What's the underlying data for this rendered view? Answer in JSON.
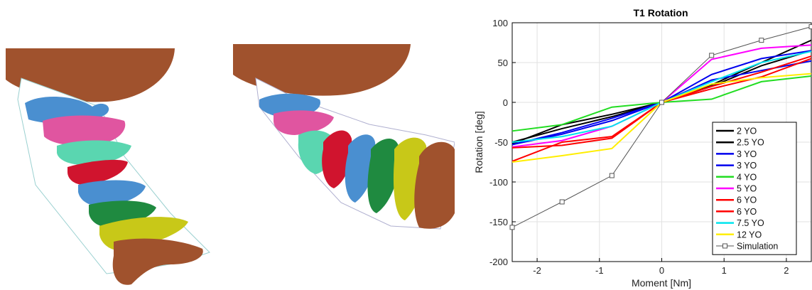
{
  "chart_data": {
    "type": "line",
    "title": "T1 Rotation",
    "xlabel": "Moment [Nm]",
    "ylabel": "Rotation [deg]",
    "xlim": [
      -2.4,
      2.4
    ],
    "ylim": [
      -200,
      100
    ],
    "xticks": [
      -2,
      -1,
      0,
      1,
      2
    ],
    "yticks": [
      -200,
      -150,
      -100,
      -50,
      0,
      50,
      100
    ],
    "grid": true,
    "legend_position": "bottom-right",
    "x": [
      -2.4,
      -1.6,
      -0.8,
      0,
      0.8,
      1.6,
      2.4
    ],
    "series": [
      {
        "name": "2 YO",
        "color": "#000000",
        "values": [
          -50,
          -33,
          -18,
          0,
          22,
          50,
          78
        ]
      },
      {
        "name": "2.5 YO",
        "color": "#000000",
        "values": [
          -52,
          -28,
          -15,
          0,
          20,
          46,
          65
        ]
      },
      {
        "name": "3 YO",
        "color": "#0000ee",
        "values": [
          -53,
          -38,
          -20,
          0,
          35,
          55,
          65
        ]
      },
      {
        "name": "3 YO",
        "color": "#0000ee",
        "values": [
          -53,
          -40,
          -23,
          0,
          28,
          40,
          52
        ]
      },
      {
        "name": "4 YO",
        "color": "#22dd22",
        "values": [
          -36,
          -28,
          -6,
          0,
          4,
          26,
          33
        ]
      },
      {
        "name": "5 YO",
        "color": "#ff00ff",
        "values": [
          -56,
          -48,
          -30,
          0,
          54,
          68,
          72
        ]
      },
      {
        "name": "6 YO",
        "color": "#ff0000",
        "values": [
          -74,
          -50,
          -43,
          0,
          20,
          38,
          58
        ]
      },
      {
        "name": "6 YO",
        "color": "#ff0000",
        "values": [
          -57,
          -54,
          -45,
          0,
          17,
          32,
          55
        ]
      },
      {
        "name": "7.5 YO",
        "color": "#00e5ee",
        "values": [
          -50,
          -43,
          -30,
          0,
          26,
          50,
          64
        ]
      },
      {
        "name": "12 YO",
        "color": "#ffee00",
        "values": [
          -75,
          -67,
          -58,
          0,
          23,
          31,
          36
        ]
      },
      {
        "name": "Simulation",
        "color": "#555555",
        "marker": "square",
        "values": [
          -157,
          -125,
          -92,
          0,
          59,
          78,
          95
        ]
      }
    ]
  }
}
